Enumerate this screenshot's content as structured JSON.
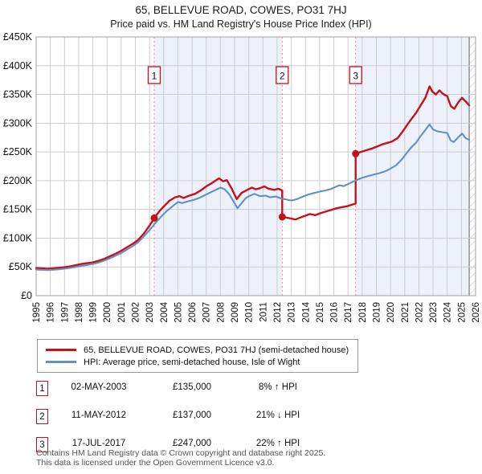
{
  "title": "65, BELLEVUE ROAD, COWES, PO31 7HJ",
  "subtitle": "Price paid vs. HM Land Registry's House Price Index (HPI)",
  "chart_data": {
    "type": "line",
    "xlim": [
      1995,
      2026
    ],
    "ylim": [
      0,
      450000
    ],
    "grid": true,
    "x_ticks": [
      1995,
      1996,
      1997,
      1998,
      1999,
      2000,
      2001,
      2002,
      2003,
      2004,
      2005,
      2006,
      2007,
      2008,
      2009,
      2010,
      2011,
      2012,
      2013,
      2014,
      2015,
      2016,
      2017,
      2018,
      2019,
      2020,
      2021,
      2022,
      2023,
      2024,
      2025,
      2026
    ],
    "y_ticks": [
      {
        "value": 0,
        "label": "£0"
      },
      {
        "value": 50000,
        "label": "£50K"
      },
      {
        "value": 100000,
        "label": "£100K"
      },
      {
        "value": 150000,
        "label": "£150K"
      },
      {
        "value": 200000,
        "label": "£200K"
      },
      {
        "value": 250000,
        "label": "£250K"
      },
      {
        "value": 300000,
        "label": "£300K"
      },
      {
        "value": 350000,
        "label": "£350K"
      },
      {
        "value": 400000,
        "label": "£400K"
      },
      {
        "value": 450000,
        "label": "£450K"
      }
    ],
    "colors": {
      "property": "#c4111e",
      "hpi": "#6090c4",
      "shade": "#edf1fa",
      "grid": "#cccccc",
      "border": "#a0a0a0",
      "sale_line": "#f98080",
      "hatch_line": "#c4c4c4",
      "hatch_edge": "#8a8a8a"
    },
    "shaded_periods": [
      [
        2003.33,
        2012.36
      ],
      [
        2017.54,
        2025.55
      ]
    ],
    "future_hatch": [
      2025.55,
      2026
    ],
    "sales": [
      {
        "n": "1",
        "year": 2003.33,
        "price": 135000
      },
      {
        "n": "2",
        "year": 2012.36,
        "price": 137000
      },
      {
        "n": "3",
        "year": 2017.54,
        "price": 247000
      }
    ],
    "series": [
      {
        "name": "65, BELLEVUE ROAD, COWES, PO31 7HJ (semi-detached house)",
        "color": "#c4111e",
        "points": [
          [
            1995.0,
            48000
          ],
          [
            1995.4,
            47500
          ],
          [
            1995.8,
            47000
          ],
          [
            1996.2,
            47500
          ],
          [
            1996.6,
            48500
          ],
          [
            1997.0,
            49500
          ],
          [
            1997.4,
            51000
          ],
          [
            1997.8,
            53000
          ],
          [
            1998.2,
            55000
          ],
          [
            1998.6,
            56500
          ],
          [
            1999.0,
            58000
          ],
          [
            1999.4,
            60500
          ],
          [
            1999.8,
            64000
          ],
          [
            2000.2,
            68500
          ],
          [
            2000.6,
            73000
          ],
          [
            2001.0,
            78000
          ],
          [
            2001.4,
            84000
          ],
          [
            2001.8,
            90000
          ],
          [
            2002.2,
            97000
          ],
          [
            2002.6,
            108000
          ],
          [
            2003.0,
            122000
          ],
          [
            2003.33,
            135000
          ],
          [
            2003.7,
            147000
          ],
          [
            2004.0,
            155000
          ],
          [
            2004.4,
            165000
          ],
          [
            2004.8,
            171000
          ],
          [
            2005.1,
            173000
          ],
          [
            2005.4,
            170000
          ],
          [
            2005.8,
            174000
          ],
          [
            2006.2,
            177000
          ],
          [
            2006.6,
            183000
          ],
          [
            2007.0,
            190000
          ],
          [
            2007.4,
            196000
          ],
          [
            2007.9,
            204000
          ],
          [
            2008.2,
            199000
          ],
          [
            2008.45,
            201000
          ],
          [
            2008.8,
            186000
          ],
          [
            2009.15,
            168000
          ],
          [
            2009.5,
            179000
          ],
          [
            2009.9,
            184000
          ],
          [
            2010.2,
            188000
          ],
          [
            2010.5,
            185000
          ],
          [
            2010.8,
            187000
          ],
          [
            2011.1,
            190000
          ],
          [
            2011.4,
            186000
          ],
          [
            2011.8,
            184000
          ],
          [
            2012.1,
            186000
          ],
          [
            2012.36,
            183000
          ],
          [
            2012.36,
            137000
          ],
          [
            2012.7,
            135500
          ],
          [
            2013.0,
            134000
          ],
          [
            2013.3,
            132500
          ],
          [
            2013.7,
            136500
          ],
          [
            2014.0,
            139000
          ],
          [
            2014.3,
            142000
          ],
          [
            2014.7,
            140000
          ],
          [
            2015.0,
            143000
          ],
          [
            2015.4,
            146000
          ],
          [
            2015.8,
            149000
          ],
          [
            2016.2,
            152000
          ],
          [
            2016.6,
            154000
          ],
          [
            2017.0,
            156000
          ],
          [
            2017.3,
            158500
          ],
          [
            2017.54,
            160000
          ],
          [
            2017.54,
            247000
          ],
          [
            2017.9,
            250000
          ],
          [
            2018.3,
            253000
          ],
          [
            2018.7,
            256000
          ],
          [
            2019.0,
            259000
          ],
          [
            2019.4,
            263000
          ],
          [
            2019.8,
            266000
          ],
          [
            2020.1,
            268000
          ],
          [
            2020.5,
            274000
          ],
          [
            2020.9,
            287000
          ],
          [
            2021.2,
            298000
          ],
          [
            2021.5,
            308000
          ],
          [
            2021.8,
            318000
          ],
          [
            2022.1,
            330000
          ],
          [
            2022.45,
            344000
          ],
          [
            2022.75,
            364000
          ],
          [
            2022.95,
            355000
          ],
          [
            2023.2,
            350000
          ],
          [
            2023.45,
            357000
          ],
          [
            2023.7,
            351000
          ],
          [
            2024.0,
            347000
          ],
          [
            2024.25,
            330000
          ],
          [
            2024.5,
            325000
          ],
          [
            2024.8,
            337000
          ],
          [
            2025.05,
            344000
          ],
          [
            2025.3,
            338000
          ],
          [
            2025.55,
            331000
          ]
        ]
      },
      {
        "name": "HPI: Average price, semi-detached house, Isle of Wight",
        "color": "#6090c4",
        "points": [
          [
            1995.0,
            45500
          ],
          [
            1995.4,
            44800
          ],
          [
            1995.8,
            44500
          ],
          [
            1996.2,
            45000
          ],
          [
            1996.6,
            45800
          ],
          [
            1997.0,
            46800
          ],
          [
            1997.4,
            48200
          ],
          [
            1997.8,
            50000
          ],
          [
            1998.2,
            51800
          ],
          [
            1998.6,
            53200
          ],
          [
            1999.0,
            55000
          ],
          [
            1999.4,
            57500
          ],
          [
            1999.8,
            61000
          ],
          [
            2000.2,
            65000
          ],
          [
            2000.6,
            69500
          ],
          [
            2001.0,
            74000
          ],
          [
            2001.4,
            80000
          ],
          [
            2001.8,
            86000
          ],
          [
            2002.2,
            93000
          ],
          [
            2002.6,
            103000
          ],
          [
            2003.0,
            114000
          ],
          [
            2003.4,
            126000
          ],
          [
            2003.8,
            137000
          ],
          [
            2004.2,
            147000
          ],
          [
            2004.6,
            155000
          ],
          [
            2005.0,
            163000
          ],
          [
            2005.3,
            161000
          ],
          [
            2005.7,
            164000
          ],
          [
            2006.1,
            166500
          ],
          [
            2006.5,
            170000
          ],
          [
            2007.0,
            176000
          ],
          [
            2007.5,
            182000
          ],
          [
            2008.0,
            188000
          ],
          [
            2008.3,
            185000
          ],
          [
            2008.6,
            177000
          ],
          [
            2009.0,
            161000
          ],
          [
            2009.2,
            152000
          ],
          [
            2009.5,
            161000
          ],
          [
            2009.8,
            170000
          ],
          [
            2010.1,
            174000
          ],
          [
            2010.4,
            177000
          ],
          [
            2010.8,
            173000
          ],
          [
            2011.2,
            174000
          ],
          [
            2011.5,
            171000
          ],
          [
            2011.9,
            172500
          ],
          [
            2012.3,
            169000
          ],
          [
            2012.7,
            167000
          ],
          [
            2013.0,
            165500
          ],
          [
            2013.4,
            168000
          ],
          [
            2013.8,
            172000
          ],
          [
            2014.2,
            176000
          ],
          [
            2014.6,
            178500
          ],
          [
            2015.0,
            181000
          ],
          [
            2015.4,
            183000
          ],
          [
            2015.8,
            185500
          ],
          [
            2016.1,
            189000
          ],
          [
            2016.4,
            192000
          ],
          [
            2016.7,
            190500
          ],
          [
            2017.0,
            194000
          ],
          [
            2017.5,
            200000
          ],
          [
            2018.0,
            205000
          ],
          [
            2018.4,
            208000
          ],
          [
            2018.8,
            210500
          ],
          [
            2019.2,
            213000
          ],
          [
            2019.6,
            216000
          ],
          [
            2020.0,
            221000
          ],
          [
            2020.4,
            227000
          ],
          [
            2020.8,
            237000
          ],
          [
            2021.2,
            250000
          ],
          [
            2021.5,
            259000
          ],
          [
            2021.8,
            266000
          ],
          [
            2022.1,
            277000
          ],
          [
            2022.45,
            288000
          ],
          [
            2022.75,
            298000
          ],
          [
            2023.0,
            289000
          ],
          [
            2023.3,
            286000
          ],
          [
            2023.6,
            284500
          ],
          [
            2024.0,
            283000
          ],
          [
            2024.25,
            270000
          ],
          [
            2024.45,
            267000
          ],
          [
            2024.8,
            276000
          ],
          [
            2025.05,
            282000
          ],
          [
            2025.3,
            274000
          ],
          [
            2025.55,
            271000
          ]
        ]
      }
    ]
  },
  "legend": {
    "entries": [
      "65, BELLEVUE ROAD, COWES, PO31 7HJ (semi-detached house)",
      "HPI: Average price, semi-detached house, Isle of Wight"
    ]
  },
  "transactions": [
    {
      "n": "1",
      "date": "02-MAY-2003",
      "price": "£135,000",
      "hpi": "8% ↑ HPI"
    },
    {
      "n": "2",
      "date": "11-MAY-2012",
      "price": "£137,000",
      "hpi": "21% ↓ HPI"
    },
    {
      "n": "3",
      "date": "17-JUL-2017",
      "price": "£247,000",
      "hpi": "22% ↑ HPI"
    }
  ],
  "footer": {
    "line1": "Contains HM Land Registry data © Crown copyright and database right 2025.",
    "line2": "This data is licensed under the Open Government Licence v3.0."
  }
}
